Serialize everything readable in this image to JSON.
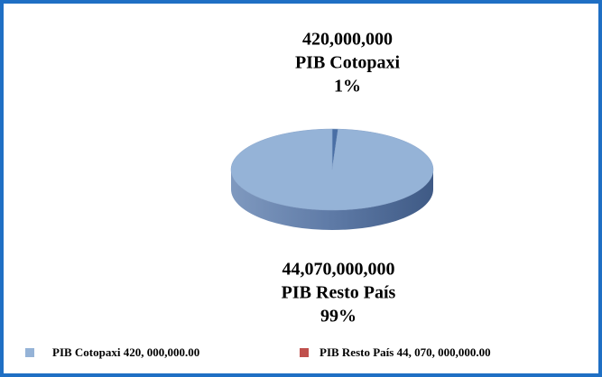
{
  "chart_data": {
    "type": "pie",
    "categories": [
      "PIB Cotopaxi",
      "PIB Resto País"
    ],
    "values": [
      420000000,
      44070000000
    ],
    "value_labels": [
      "420,000,000",
      "44,070,000,000"
    ],
    "percent_labels": [
      "1%",
      "99%"
    ],
    "colors": [
      "#4a6fa5",
      "#95b3d7"
    ],
    "legend": [
      "PIB Cotopaxi 420, 000,000.00",
      "PIB Resto País 44, 070, 000,000.00"
    ],
    "legend_colors": [
      "#95b3d7",
      "#c0504d"
    ]
  }
}
